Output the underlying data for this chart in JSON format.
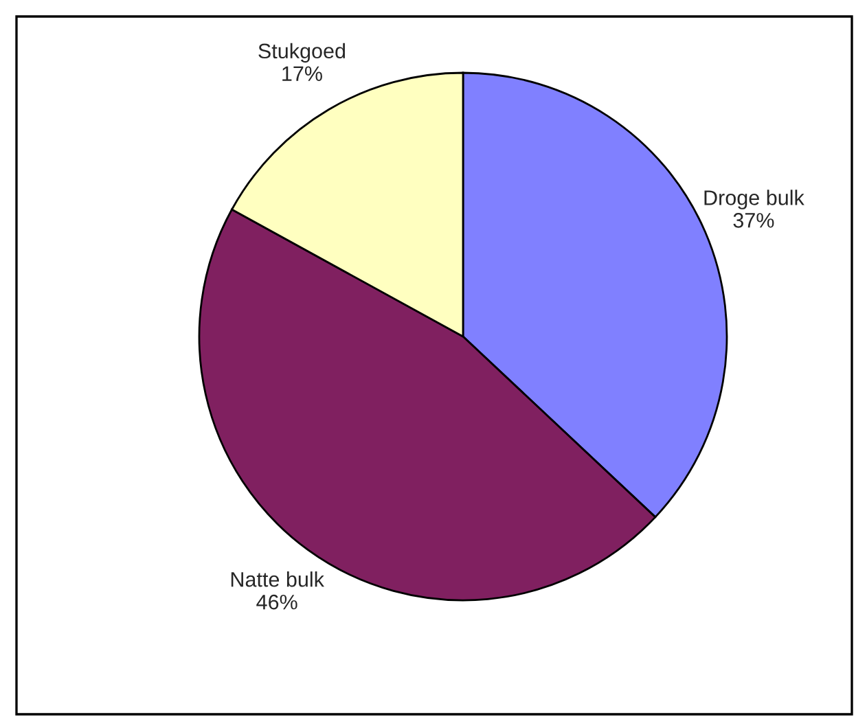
{
  "chart_data": {
    "type": "pie",
    "categories": [
      "Droge bulk",
      "Natte bulk",
      "Stukgoed"
    ],
    "values": [
      37,
      46,
      17
    ],
    "value_labels": [
      "37%",
      "46%",
      "17%"
    ],
    "colors": [
      "#8080ff",
      "#802060",
      "#ffffc0"
    ],
    "legend": false
  }
}
